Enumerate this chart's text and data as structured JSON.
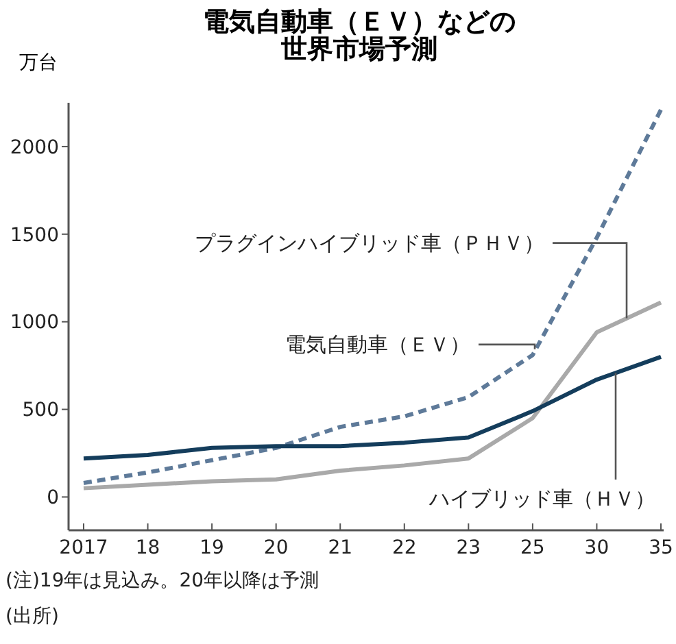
{
  "chart_data": {
    "type": "line",
    "title": "電気自動車（ＥＶ）などの世界市場予測",
    "ylabel": "万台",
    "categories": [
      "2017",
      "18",
      "19",
      "20",
      "21",
      "22",
      "23",
      "25",
      "30",
      "35"
    ],
    "series": [
      {
        "name": "電気自動車（ＥＶ）",
        "color": "#5e7a99",
        "line_style": "dashed",
        "values": [
          80,
          140,
          210,
          280,
          400,
          460,
          570,
          810,
          1480,
          2210
        ]
      },
      {
        "name": "プラグインハイブリッド車（ＰＨＶ）",
        "color": "#a9a9a9",
        "line_style": "solid",
        "values": [
          50,
          70,
          90,
          100,
          150,
          180,
          220,
          450,
          940,
          1110
        ]
      },
      {
        "name": "ハイブリッド車（ＨＶ）",
        "color": "#143d5c",
        "line_style": "solid",
        "values": [
          220,
          240,
          280,
          290,
          290,
          310,
          340,
          490,
          670,
          800
        ]
      }
    ],
    "ylim": [
      -190,
      2250
    ],
    "yticks": [
      0,
      500,
      1000,
      1500,
      2000
    ],
    "grid": false,
    "annotations": [
      "(注)19年は見込み。20年以降は予測",
      "(出所)"
    ]
  }
}
